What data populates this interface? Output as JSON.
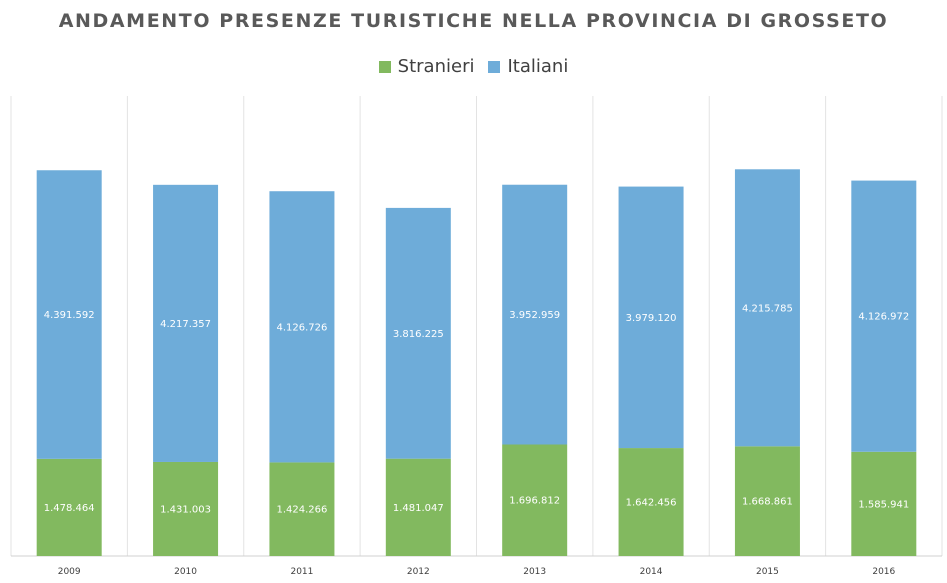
{
  "chart_data": {
    "type": "bar",
    "stacked": true,
    "title": "ANDAMENTO PRESENZE TURISTICHE NELLA PROVINCIA DI GROSSETO",
    "categories": [
      "2009",
      "2010",
      "2011",
      "2012",
      "2013",
      "2014",
      "2015",
      "2016"
    ],
    "series": [
      {
        "name": "Stranieri",
        "color": "#82b95f",
        "values": [
          1478464,
          1431003,
          1424266,
          1481047,
          1696812,
          1642456,
          1668861,
          1585941
        ],
        "labels": [
          "1.478.464",
          "1.431.003",
          "1.424.266",
          "1.481.047",
          "1.696.812",
          "1.642.456",
          "1.668.861",
          "1.585.941"
        ]
      },
      {
        "name": "Italiani",
        "color": "#6eacd9",
        "values": [
          4391592,
          4217357,
          4126726,
          3816225,
          3952959,
          3979120,
          4215785,
          4126972
        ],
        "labels": [
          "4.391.592",
          "4.217.357",
          "4.126.726",
          "3.816.225",
          "3.952.959",
          "3.979.120",
          "4.215.785",
          "4.126.972"
        ]
      }
    ],
    "xlabel": "",
    "ylabel": "",
    "ylim": [
      0,
      7000000
    ],
    "grid": "vertical",
    "legend": "top-center"
  }
}
